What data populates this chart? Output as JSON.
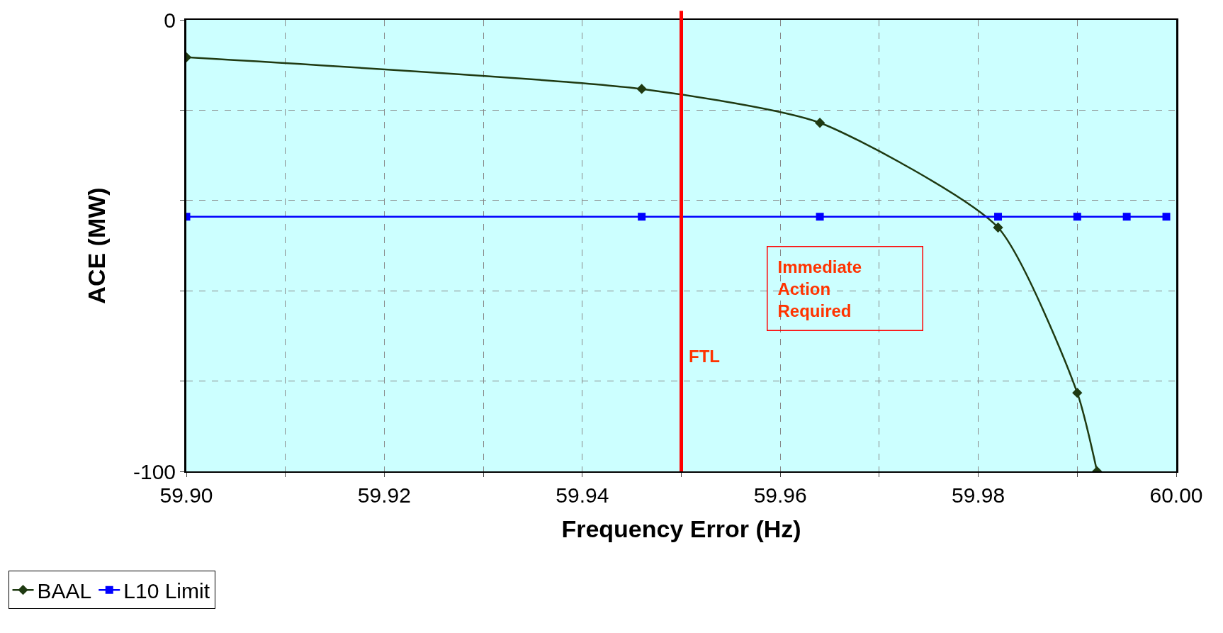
{
  "chart_data": {
    "type": "line",
    "xlabel": "Frequency Error (Hz)",
    "ylabel": "ACE (MW)",
    "xlim": [
      59.9,
      60.0
    ],
    "xticks": [
      {
        "value": 59.9,
        "label": "59.90"
      },
      {
        "value": 59.91,
        "label": null
      },
      59.92,
      {
        "value": 59.93,
        "label": null
      },
      59.94,
      {
        "value": 59.95,
        "label": null
      },
      59.96,
      {
        "value": 59.97,
        "label": null
      },
      59.98,
      {
        "value": 59.99,
        "label": null
      },
      {
        "value": 60.0,
        "label": "60.00"
      }
    ],
    "ylim": [
      -100,
      0
    ],
    "yticks": [
      {
        "value": -100,
        "label": "-100"
      },
      {
        "value": -80,
        "label": null
      },
      {
        "value": -60,
        "label": null
      },
      {
        "value": -40,
        "label": null
      },
      {
        "value": -20,
        "label": null
      },
      0
    ],
    "grid": true,
    "legend": "bottom left",
    "marker": "diamond",
    "series": [
      {
        "name": "BAAL",
        "color": "#1f3a12",
        "x": [
          59.9,
          59.946,
          59.964,
          59.982,
          59.99,
          59.992
        ],
        "values": [
          -8.3,
          -15.3,
          -22.8,
          -46,
          -82.6,
          -100
        ]
      },
      {
        "name": "L10 Limit",
        "color": "#0000ff",
        "marker": "square",
        "x": [
          59.9,
          59.946,
          59.964,
          59.982,
          59.99,
          59.995,
          59.999
        ],
        "values": [
          -43.6,
          -43.6,
          -43.6,
          -43.6,
          -43.6,
          -43.6,
          -43.6
        ]
      }
    ],
    "ref_lines": [
      {
        "axis": "x",
        "value": 59.95,
        "label": "FTL",
        "color": "#ff0000"
      }
    ],
    "annotations": [
      "Immediate Action Required"
    ]
  }
}
